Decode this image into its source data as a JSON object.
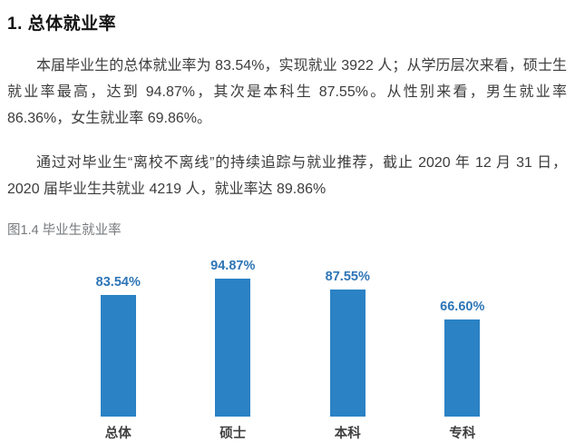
{
  "page": {
    "heading": "1. 总体就业率",
    "paragraphs": [
      "本届毕业生的总体就业率为 83.54%，实现就业 3922 人；从学历层次来看，硕士生就业率最高，达到 94.87%，其次是本科生 87.55%。从性别来看，男生就业率 86.36%，女生就业率 69.86%。",
      "通过对毕业生“离校不离线”的持续追踪与就业推荐，截止 2020 年 12 月 31 日，2020 届毕业生共就业 4219 人，就业率达 89.86%"
    ],
    "figure_caption": "图1.4 毕业生就业率"
  },
  "chart_data": {
    "type": "bar",
    "title": "图1.4 毕业生就业率",
    "categories": [
      "总体",
      "硕士",
      "本科",
      "专科"
    ],
    "values": [
      83.54,
      94.87,
      87.55,
      66.6
    ],
    "value_labels": [
      "83.54%",
      "94.87%",
      "87.55%",
      "66.60%"
    ],
    "xlabel": "",
    "ylabel": "",
    "ylim": [
      0,
      100
    ],
    "grid": false,
    "axes_visible": false,
    "legend": "none",
    "data_label_position": "above-bar",
    "colors": {
      "bar": "#2b82c4",
      "value_label": "#2e75b6",
      "category_label": "#3f3f3f",
      "caption": "#76797c",
      "body_text": "#3c3c3c"
    }
  }
}
